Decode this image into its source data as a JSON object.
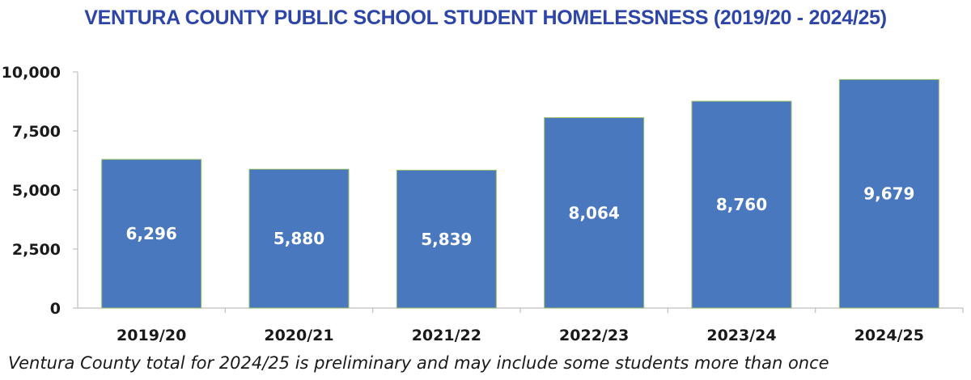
{
  "colors": {
    "title": "#2E45A8",
    "bar_fill": "#4A78BF",
    "bar_stroke": "#9DBE6A",
    "axis": "#BFBFBF"
  },
  "chart_data": {
    "type": "bar",
    "title": "VENTURA COUNTY PUBLIC SCHOOL STUDENT HOMELESSNESS (2019/20 - 2024/25)",
    "categories": [
      "2019/20",
      "2020/21",
      "2021/22",
      "2022/23",
      "2023/24",
      "2024/25"
    ],
    "values": [
      6296,
      5880,
      5839,
      8064,
      8760,
      9679
    ],
    "data_labels": [
      "6,296",
      "5,880",
      "5,839",
      "8,064",
      "8,760",
      "9,679"
    ],
    "ylim": [
      0,
      10000
    ],
    "yticks": [
      0,
      2500,
      5000,
      7500,
      10000
    ],
    "ytick_labels": [
      "0",
      "2,500",
      "5,000",
      "7,500",
      "10,000"
    ],
    "xlabel": "",
    "ylabel": "",
    "grid": false,
    "legend": "none"
  },
  "note": "Ventura County total for 2024/25 is preliminary and may include some students more than once"
}
